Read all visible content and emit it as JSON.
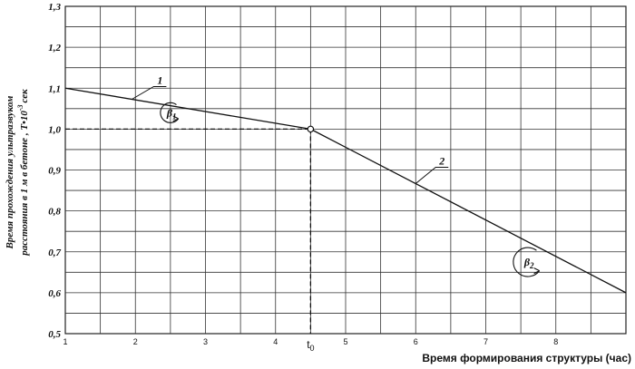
{
  "chart_data": {
    "type": "line",
    "xlabel": "Время формирования структуры (час)",
    "ylabel_line1": "Время прохождения ультразвуком",
    "ylabel_line2": "расстояния в 1 м в бетоне , T•10",
    "ylabel_sup": "-3",
    "ylabel_unit": "сек",
    "xlim": [
      1,
      9
    ],
    "ylim": [
      0.5,
      1.3
    ],
    "x_ticks": [
      {
        "value": 1,
        "label": "1"
      },
      {
        "value": 2,
        "label": "2"
      },
      {
        "value": 3,
        "label": "3"
      },
      {
        "value": 4,
        "label": "4"
      },
      {
        "value": 5,
        "label": "5"
      },
      {
        "value": 6,
        "label": "6"
      },
      {
        "value": 7,
        "label": "7"
      },
      {
        "value": 8,
        "label": "8"
      }
    ],
    "y_ticks": [
      {
        "value": 0.5,
        "label": "0,5"
      },
      {
        "value": 0.6,
        "label": "0,6"
      },
      {
        "value": 0.7,
        "label": "0,7"
      },
      {
        "value": 0.8,
        "label": "0,8"
      },
      {
        "value": 0.9,
        "label": "0,9"
      },
      {
        "value": 1.0,
        "label": "1,0"
      },
      {
        "value": 1.1,
        "label": "1,1"
      },
      {
        "value": 1.2,
        "label": "1,2"
      },
      {
        "value": 1.3,
        "label": "1,3"
      }
    ],
    "grid": true,
    "series": [
      {
        "label": "1",
        "points": [
          [
            1,
            1.1
          ],
          [
            4.5,
            1.0
          ]
        ]
      },
      {
        "label": "2",
        "points": [
          [
            4.5,
            1.0
          ],
          [
            9,
            0.6
          ]
        ]
      }
    ],
    "marker": {
      "x": 4.5,
      "y": 1.0,
      "label": "t",
      "label_sub": "0"
    },
    "angles": [
      {
        "symbol": "β",
        "sub": "1",
        "x": 2.5,
        "y": 1.04
      },
      {
        "symbol": "β",
        "sub": "2",
        "x": 7.6,
        "y": 0.675
      }
    ]
  }
}
